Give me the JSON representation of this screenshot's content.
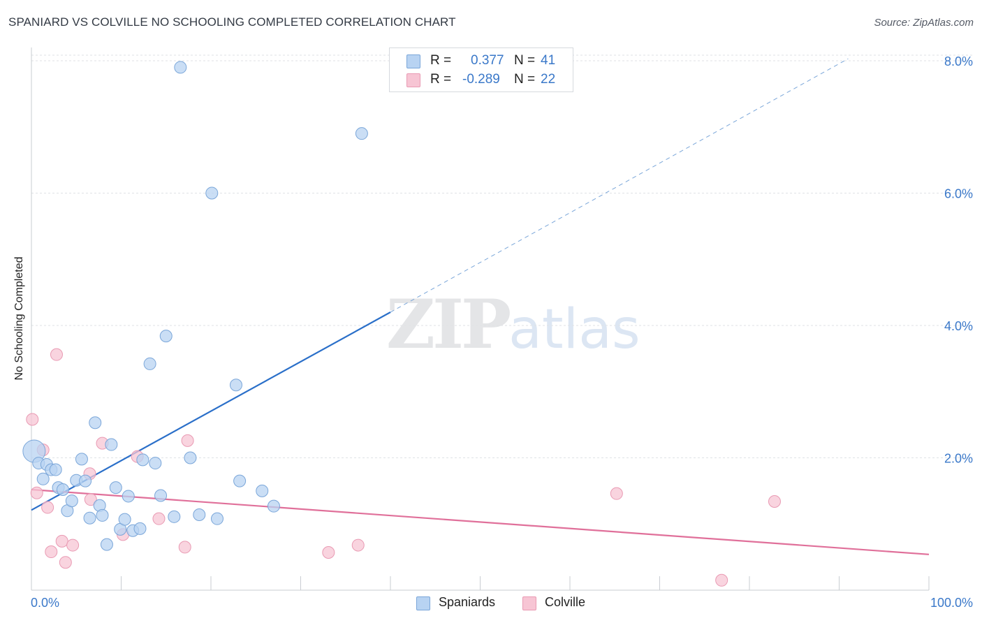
{
  "title": "SPANIARD VS COLVILLE NO SCHOOLING COMPLETED CORRELATION CHART",
  "source": "Source: ZipAtlas.com",
  "watermark": {
    "zip": "ZIP",
    "atlas": "atlas"
  },
  "stats": {
    "spaniards": {
      "r_label": "R =",
      "r_value": "0.377",
      "n_label": "N =",
      "n_value": "41"
    },
    "colville": {
      "r_label": "R =",
      "r_value": "-0.289",
      "n_label": "N =",
      "n_value": "22"
    }
  },
  "legend": {
    "spaniards": "Spaniards",
    "colville": "Colville"
  },
  "colors": {
    "spaniards_fill": "#b8d3f2",
    "spaniards_stroke": "#7aa6d9",
    "spaniards_line": "#2a6fc9",
    "colville_fill": "#f7c5d4",
    "colville_stroke": "#e99ab3",
    "colville_line": "#e0709a",
    "tick_label": "#3a78c9"
  },
  "chart_data": {
    "type": "scatter",
    "title": "SPANIARD VS COLVILLE NO SCHOOLING COMPLETED CORRELATION CHART",
    "xlabel": "",
    "ylabel": "No Schooling Completed",
    "xlim": [
      0,
      100
    ],
    "ylim": [
      0,
      8.2
    ],
    "x_tick_labels": [
      "0.0%",
      "100.0%"
    ],
    "y_ticks": [
      2,
      4,
      6,
      8
    ],
    "y_tick_labels": [
      "2.0%",
      "4.0%",
      "6.0%",
      "8.0%"
    ],
    "grid": true,
    "series": [
      {
        "name": "Spaniards",
        "points": [
          [
            0.3,
            2.1
          ],
          [
            0.8,
            1.92
          ],
          [
            1.3,
            1.68
          ],
          [
            1.7,
            1.9
          ],
          [
            2.2,
            1.82
          ],
          [
            2.7,
            1.82
          ],
          [
            3.0,
            1.55
          ],
          [
            3.5,
            1.52
          ],
          [
            4.0,
            1.2
          ],
          [
            4.5,
            1.35
          ],
          [
            5.0,
            1.66
          ],
          [
            5.6,
            1.98
          ],
          [
            6.0,
            1.65
          ],
          [
            6.5,
            1.09
          ],
          [
            7.1,
            2.53
          ],
          [
            7.6,
            1.28
          ],
          [
            7.9,
            1.13
          ],
          [
            8.4,
            0.69
          ],
          [
            8.9,
            2.2
          ],
          [
            9.4,
            1.55
          ],
          [
            9.9,
            0.92
          ],
          [
            10.4,
            1.07
          ],
          [
            10.8,
            1.42
          ],
          [
            11.3,
            0.9
          ],
          [
            12.1,
            0.93
          ],
          [
            12.4,
            1.97
          ],
          [
            13.2,
            3.42
          ],
          [
            13.8,
            1.92
          ],
          [
            14.4,
            1.43
          ],
          [
            15.0,
            3.84
          ],
          [
            15.9,
            1.11
          ],
          [
            16.6,
            7.9
          ],
          [
            17.7,
            2.0
          ],
          [
            18.7,
            1.14
          ],
          [
            20.1,
            6.0
          ],
          [
            20.7,
            1.08
          ],
          [
            22.8,
            3.1
          ],
          [
            23.2,
            1.65
          ],
          [
            25.7,
            1.5
          ],
          [
            27.0,
            1.27
          ],
          [
            36.8,
            6.9
          ]
        ],
        "trend": {
          "from": [
            0,
            1.21
          ],
          "solid_to": [
            40,
            4.2
          ],
          "dashed_to": [
            91,
            8.03
          ]
        }
      },
      {
        "name": "Colville",
        "points": [
          [
            0.1,
            2.58
          ],
          [
            0.6,
            1.47
          ],
          [
            1.3,
            2.12
          ],
          [
            1.8,
            1.25
          ],
          [
            2.2,
            0.58
          ],
          [
            2.8,
            3.56
          ],
          [
            3.4,
            0.74
          ],
          [
            3.8,
            0.42
          ],
          [
            4.6,
            0.68
          ],
          [
            6.5,
            1.76
          ],
          [
            6.6,
            1.37
          ],
          [
            7.9,
            2.22
          ],
          [
            10.2,
            0.84
          ],
          [
            11.8,
            2.02
          ],
          [
            14.2,
            1.08
          ],
          [
            17.1,
            0.65
          ],
          [
            17.4,
            2.26
          ],
          [
            33.1,
            0.57
          ],
          [
            36.4,
            0.68
          ],
          [
            65.2,
            1.46
          ],
          [
            76.9,
            0.15
          ],
          [
            82.8,
            1.34
          ]
        ],
        "trend": {
          "from": [
            0,
            1.52
          ],
          "to": [
            100,
            0.54
          ]
        }
      }
    ]
  }
}
